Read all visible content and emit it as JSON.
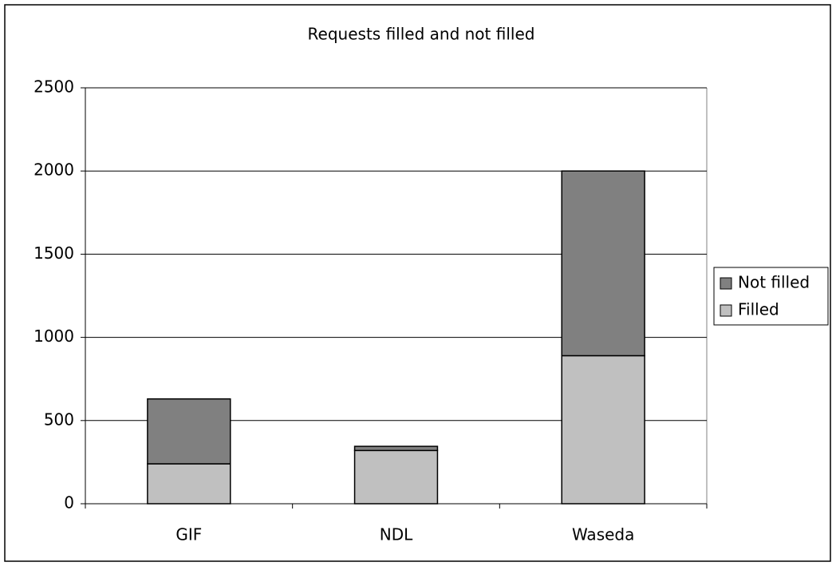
{
  "chart_data": {
    "type": "stacked_bar",
    "title": "Requests filled and not filled",
    "categories": [
      "GIF",
      "NDL",
      "Waseda"
    ],
    "series": [
      {
        "name": "Filled",
        "color": "#c0c0c0",
        "values": [
          240,
          320,
          890
        ]
      },
      {
        "name": "Not filled",
        "color": "#808080",
        "values": [
          390,
          25,
          1110
        ]
      }
    ],
    "ylim": [
      0,
      2500
    ],
    "yticks": [
      0,
      500,
      1000,
      1500,
      2000,
      2500
    ],
    "grid": true,
    "legend": "right"
  }
}
